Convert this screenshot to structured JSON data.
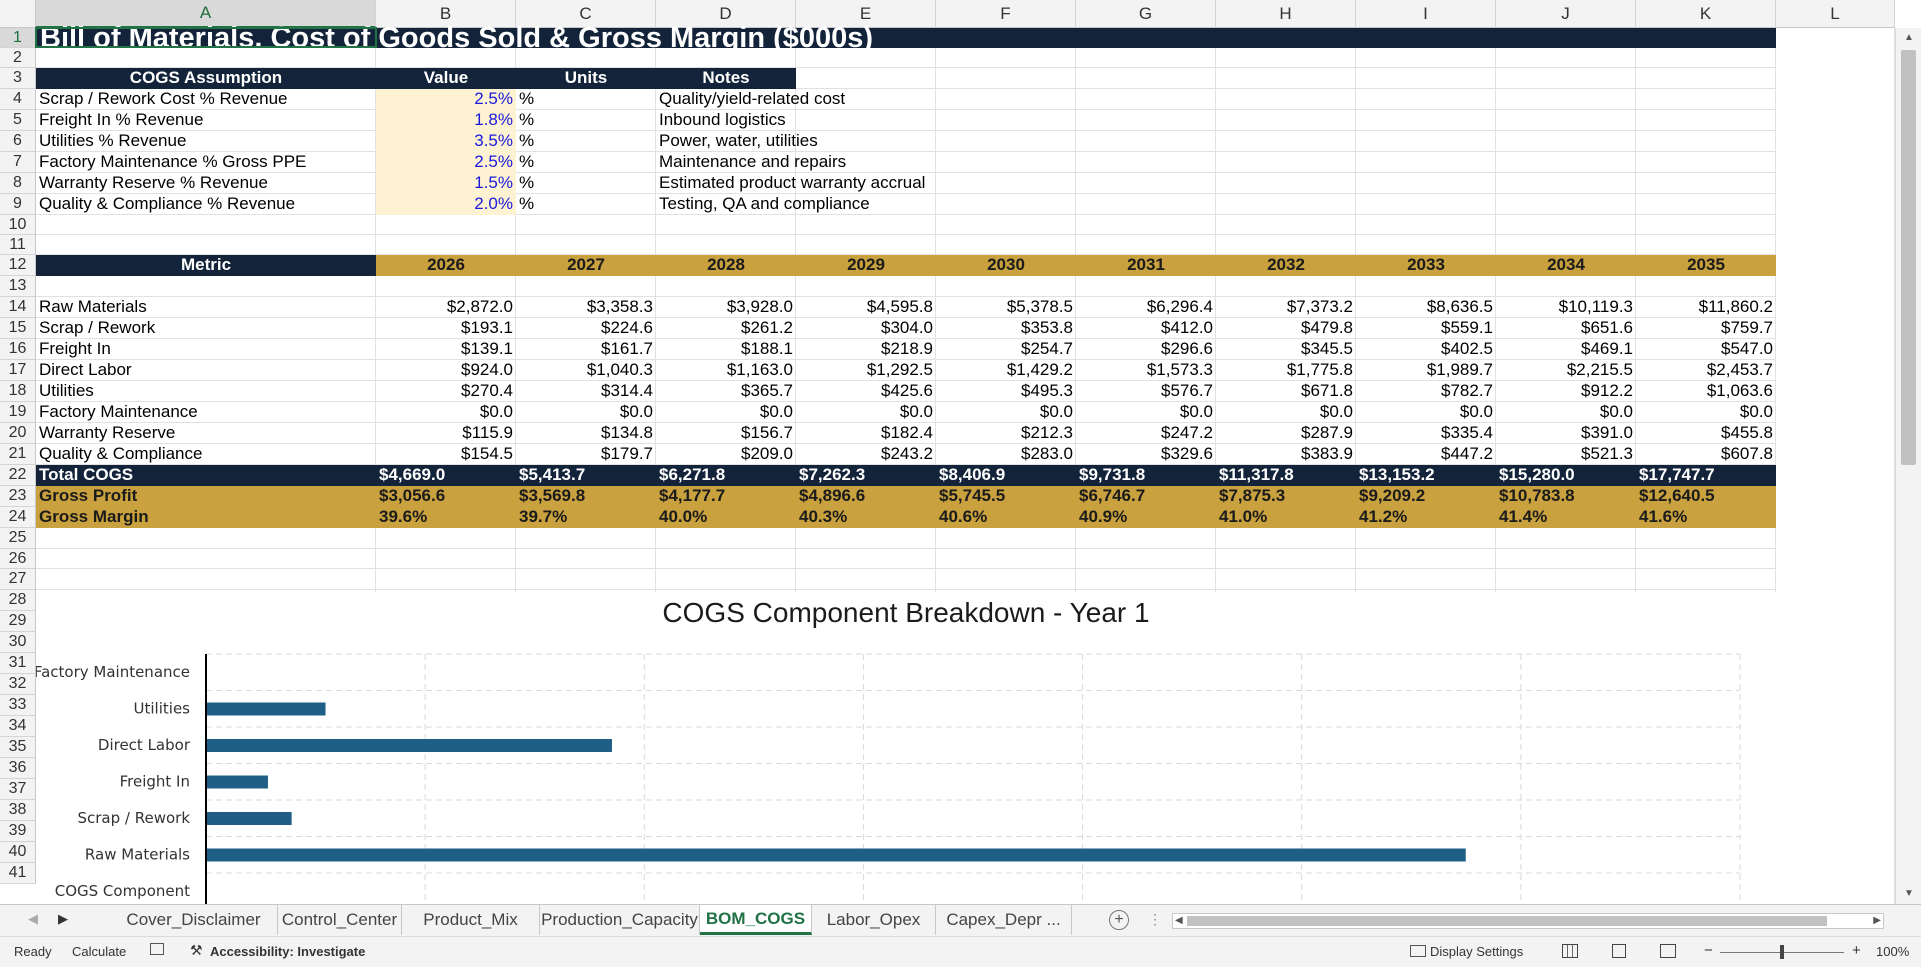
{
  "columns": [
    "A",
    "B",
    "C",
    "D",
    "E",
    "F",
    "G",
    "H",
    "I",
    "J",
    "K",
    "L"
  ],
  "rows": [
    "1",
    "2",
    "3",
    "4",
    "5",
    "6",
    "7",
    "8",
    "9",
    "10",
    "11",
    "12",
    "13",
    "14",
    "15",
    "16",
    "17",
    "18",
    "19",
    "20",
    "21",
    "22",
    "23",
    "24",
    "25",
    "26",
    "27",
    "28",
    "29",
    "30",
    "31",
    "32",
    "33",
    "34",
    "35",
    "36",
    "37",
    "38",
    "39",
    "40",
    "41"
  ],
  "title": "Bill of Materials, Cost of Goods Sold & Gross Margin ($000s)",
  "assumptions": {
    "headers": [
      "COGS Assumption",
      "Value",
      "Units",
      "Notes"
    ],
    "rows": [
      {
        "label": "Scrap / Rework Cost % Revenue",
        "value": "2.5%",
        "unit": "%",
        "note": "Quality/yield-related cost"
      },
      {
        "label": "Freight In % Revenue",
        "value": "1.8%",
        "unit": "%",
        "note": "Inbound logistics"
      },
      {
        "label": "Utilities % Revenue",
        "value": "3.5%",
        "unit": "%",
        "note": "Power, water, utilities"
      },
      {
        "label": "Factory Maintenance % Gross PPE",
        "value": "2.5%",
        "unit": "%",
        "note": "Maintenance and repairs"
      },
      {
        "label": "Warranty Reserve % Revenue",
        "value": "1.5%",
        "unit": "%",
        "note": "Estimated product warranty accrual"
      },
      {
        "label": "Quality & Compliance % Revenue",
        "value": "2.0%",
        "unit": "%",
        "note": "Testing, QA and compliance"
      }
    ]
  },
  "metrics": {
    "header": "Metric",
    "years": [
      "2026",
      "2027",
      "2028",
      "2029",
      "2030",
      "2031",
      "2032",
      "2033",
      "2034",
      "2035"
    ],
    "rows": [
      {
        "label": "Raw Materials",
        "values": [
          "$2,872.0",
          "$3,358.3",
          "$3,928.0",
          "$4,595.8",
          "$5,378.5",
          "$6,296.4",
          "$7,373.2",
          "$8,636.5",
          "$10,119.3",
          "$11,860.2"
        ]
      },
      {
        "label": "Scrap / Rework",
        "values": [
          "$193.1",
          "$224.6",
          "$261.2",
          "$304.0",
          "$353.8",
          "$412.0",
          "$479.8",
          "$559.1",
          "$651.6",
          "$759.7"
        ]
      },
      {
        "label": "Freight In",
        "values": [
          "$139.1",
          "$161.7",
          "$188.1",
          "$218.9",
          "$254.7",
          "$296.6",
          "$345.5",
          "$402.5",
          "$469.1",
          "$547.0"
        ]
      },
      {
        "label": "Direct Labor",
        "values": [
          "$924.0",
          "$1,040.3",
          "$1,163.0",
          "$1,292.5",
          "$1,429.2",
          "$1,573.3",
          "$1,775.8",
          "$1,989.7",
          "$2,215.5",
          "$2,453.7"
        ]
      },
      {
        "label": "Utilities",
        "values": [
          "$270.4",
          "$314.4",
          "$365.7",
          "$425.6",
          "$495.3",
          "$576.7",
          "$671.8",
          "$782.7",
          "$912.2",
          "$1,063.6"
        ]
      },
      {
        "label": "Factory Maintenance",
        "values": [
          "$0.0",
          "$0.0",
          "$0.0",
          "$0.0",
          "$0.0",
          "$0.0",
          "$0.0",
          "$0.0",
          "$0.0",
          "$0.0"
        ]
      },
      {
        "label": "Warranty Reserve",
        "values": [
          "$115.9",
          "$134.8",
          "$156.7",
          "$182.4",
          "$212.3",
          "$247.2",
          "$287.9",
          "$335.4",
          "$391.0",
          "$455.8"
        ]
      },
      {
        "label": "Quality & Compliance",
        "values": [
          "$154.5",
          "$179.7",
          "$209.0",
          "$243.2",
          "$283.0",
          "$329.6",
          "$383.9",
          "$447.2",
          "$521.3",
          "$607.8"
        ]
      }
    ],
    "total": {
      "label": "Total COGS",
      "values": [
        "$4,669.0",
        "$5,413.7",
        "$6,271.8",
        "$7,262.3",
        "$8,406.9",
        "$9,731.8",
        "$11,317.8",
        "$13,153.2",
        "$15,280.0",
        "$17,747.7"
      ]
    },
    "gross_profit": {
      "label": "Gross Profit",
      "values": [
        "$3,056.6",
        "$3,569.8",
        "$4,177.7",
        "$4,896.6",
        "$5,745.5",
        "$6,746.7",
        "$7,875.3",
        "$9,209.2",
        "$10,783.8",
        "$12,640.5"
      ]
    },
    "gross_margin": {
      "label": "Gross Margin",
      "values": [
        "39.6%",
        "39.7%",
        "40.0%",
        "40.3%",
        "40.6%",
        "40.9%",
        "41.0%",
        "41.2%",
        "41.4%",
        "41.6%"
      ]
    }
  },
  "chart_data": {
    "type": "bar",
    "orientation": "horizontal",
    "title": "COGS Component Breakdown - Year 1",
    "categories": [
      "Factory Maintenance",
      "Utilities",
      "Direct Labor",
      "Freight In",
      "Scrap / Rework",
      "Raw Materials",
      "COGS Component"
    ],
    "values": [
      0.0,
      270.4,
      924.0,
      139.1,
      193.1,
      2872.0,
      null
    ],
    "xlim": [
      0,
      3500
    ],
    "grid": true,
    "bar_color": "#1f5f85"
  },
  "sheet_tabs": [
    "Cover_Disclaimer",
    "Control_Center",
    "Product_Mix",
    "Production_Capacity",
    "BOM_COGS",
    "Labor_Opex",
    "Capex_Depr ..."
  ],
  "active_tab": "BOM_COGS",
  "status": {
    "ready": "Ready",
    "calculate": "Calculate",
    "accessibility": "Accessibility: Investigate",
    "display_settings": "Display Settings",
    "zoom": "100%"
  },
  "colors": {
    "navy": "#13243a",
    "gold": "#c9a13e",
    "input_fill": "#fdf2d2",
    "input_text": "#1a1adc",
    "accent": "#217346"
  }
}
